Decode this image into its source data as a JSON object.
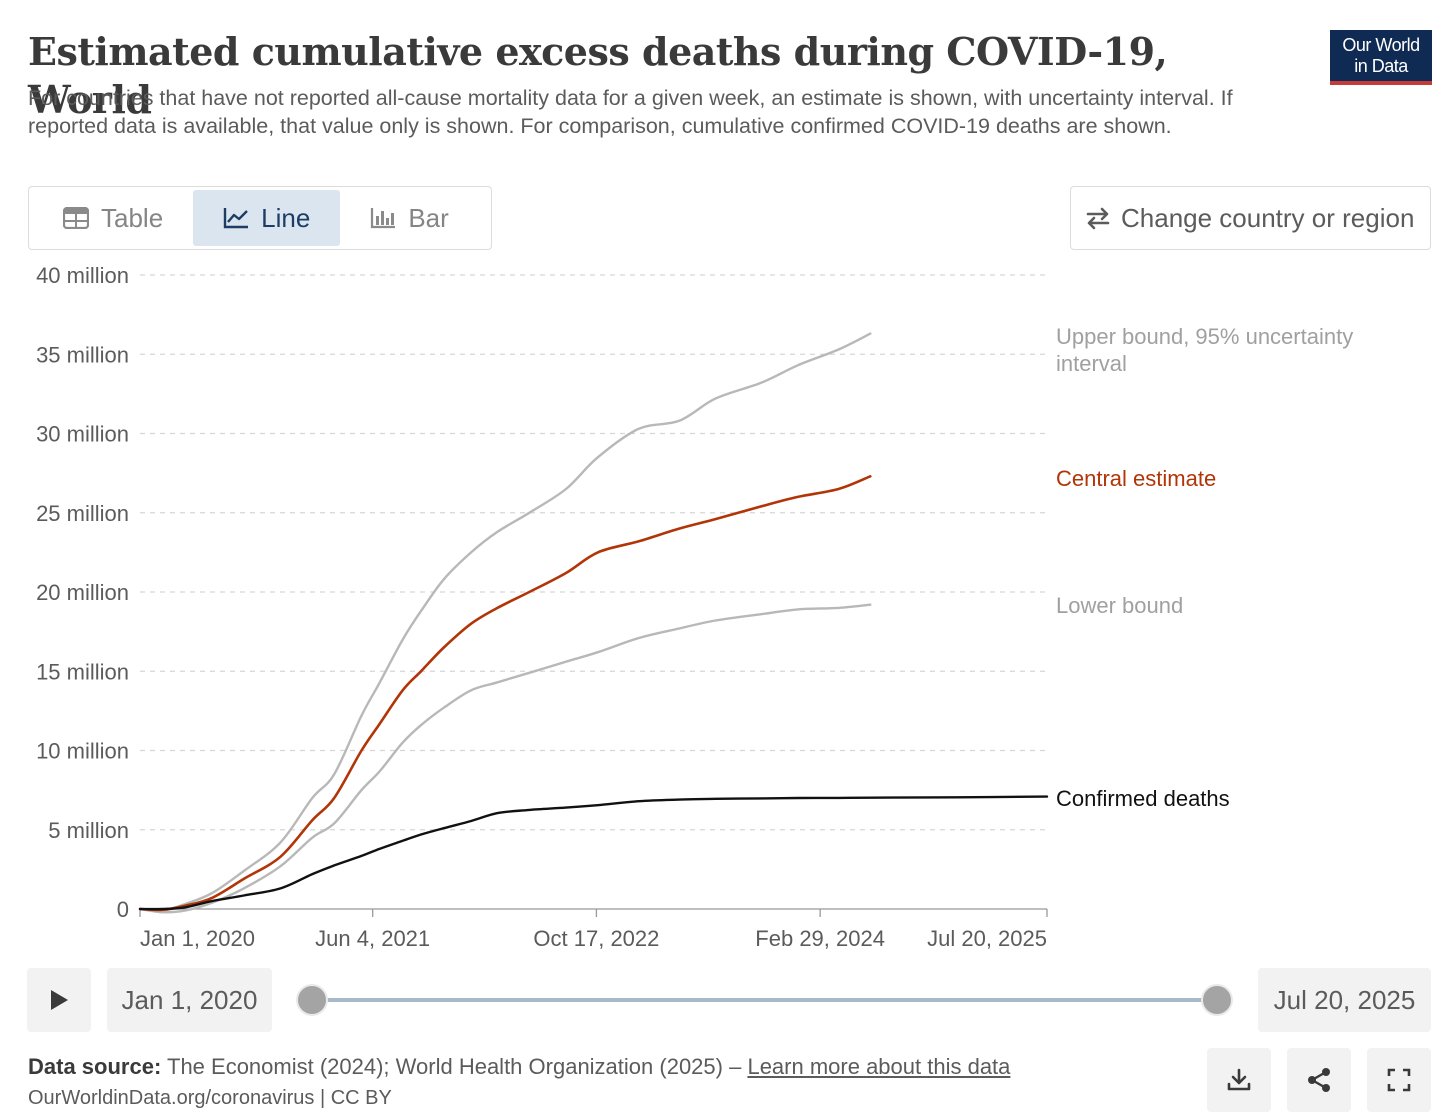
{
  "header": {
    "title": "Estimated cumulative excess deaths during COVID-19, World",
    "subtitle": "For countries that have not reported all-cause mortality data for a given week, an estimate is shown, with uncertainty interval. If reported data is available, that value only is shown. For comparison, cumulative confirmed COVID-19 deaths are shown.",
    "logo_line1": "Our World",
    "logo_line2": "in Data"
  },
  "tabs": [
    {
      "label": "Table",
      "icon": "table-icon",
      "active": false
    },
    {
      "label": "Line",
      "icon": "line-chart-icon",
      "active": true
    },
    {
      "label": "Bar",
      "icon": "bar-chart-icon",
      "active": false
    }
  ],
  "change_button": {
    "label": "Change country or region",
    "icon": "swap-arrows-icon"
  },
  "chart_data": {
    "type": "line",
    "title": "Estimated cumulative excess deaths during COVID-19, World",
    "x_type": "date",
    "xlim": [
      "2020-01-01",
      "2025-07-20"
    ],
    "x_ticks": [
      "2020-01-01",
      "2021-06-04",
      "2022-10-17",
      "2024-02-29",
      "2025-07-20"
    ],
    "x_tick_labels": [
      "Jan 1, 2020",
      "Jun 4, 2021",
      "Oct 17, 2022",
      "Feb 29, 2024",
      "Jul 20, 2025"
    ],
    "ylim": [
      0,
      40000000
    ],
    "y_ticks": [
      0,
      5000000,
      10000000,
      15000000,
      20000000,
      25000000,
      30000000,
      35000000,
      40000000
    ],
    "y_tick_labels": [
      "0",
      "5 million",
      "10 million",
      "15 million",
      "20 million",
      "25 million",
      "30 million",
      "35 million",
      "40 million"
    ],
    "grid": "horizontal dashed",
    "legend": "line end labels",
    "series": [
      {
        "name": "Upper bound, 95% uncertainty interval",
        "color": "#b8b8b8",
        "x": [
          "2020-01-01",
          "2020-02-20",
          "2020-04-10",
          "2020-06-10",
          "2020-08-20",
          "2020-11-10",
          "2021-01-20",
          "2021-03-10",
          "2021-05-10",
          "2021-06-20",
          "2021-08-10",
          "2021-09-20",
          "2021-11-10",
          "2022-01-10",
          "2022-03-10",
          "2022-05-20",
          "2022-08-10",
          "2022-10-20",
          "2023-01-20",
          "2023-04-20",
          "2023-07-10",
          "2023-10-20",
          "2024-01-10",
          "2024-04-10",
          "2024-06-20"
        ],
        "y": [
          0,
          -100000,
          300000,
          1000000,
          2400000,
          4200000,
          7000000,
          8500000,
          12200000,
          14300000,
          17000000,
          18800000,
          20800000,
          22500000,
          23800000,
          25000000,
          26500000,
          28500000,
          30300000,
          30800000,
          32200000,
          33200000,
          34300000,
          35300000,
          36300000
        ]
      },
      {
        "name": "Central estimate",
        "color": "#b13507",
        "x": [
          "2020-01-01",
          "2020-02-20",
          "2020-04-10",
          "2020-06-10",
          "2020-08-20",
          "2020-11-10",
          "2021-01-20",
          "2021-03-10",
          "2021-05-10",
          "2021-06-20",
          "2021-08-10",
          "2021-09-20",
          "2021-11-10",
          "2022-01-10",
          "2022-03-10",
          "2022-05-20",
          "2022-08-10",
          "2022-10-20",
          "2023-01-20",
          "2023-04-20",
          "2023-07-10",
          "2023-10-20",
          "2024-01-10",
          "2024-04-10",
          "2024-06-20"
        ],
        "y": [
          0,
          -50000,
          200000,
          700000,
          1900000,
          3300000,
          5600000,
          7000000,
          10000000,
          11700000,
          13800000,
          15000000,
          16500000,
          18000000,
          19000000,
          20000000,
          21200000,
          22500000,
          23200000,
          24000000,
          24600000,
          25400000,
          26000000,
          26500000,
          27300000
        ]
      },
      {
        "name": "Lower bound",
        "color": "#b8b8b8",
        "x": [
          "2020-01-01",
          "2020-02-20",
          "2020-04-10",
          "2020-06-10",
          "2020-08-20",
          "2020-11-10",
          "2021-01-20",
          "2021-03-10",
          "2021-05-10",
          "2021-06-20",
          "2021-08-10",
          "2021-09-20",
          "2021-11-10",
          "2022-01-10",
          "2022-03-10",
          "2022-05-20",
          "2022-08-10",
          "2022-10-20",
          "2023-01-20",
          "2023-04-20",
          "2023-07-10",
          "2023-10-20",
          "2024-01-10",
          "2024-04-10",
          "2024-06-20"
        ],
        "y": [
          0,
          -200000,
          -100000,
          400000,
          1300000,
          2700000,
          4500000,
          5400000,
          7500000,
          8700000,
          10500000,
          11600000,
          12700000,
          13800000,
          14300000,
          14900000,
          15600000,
          16200000,
          17100000,
          17700000,
          18200000,
          18600000,
          18900000,
          19000000,
          19200000
        ]
      },
      {
        "name": "Confirmed deaths",
        "color": "#111111",
        "x": [
          "2020-01-01",
          "2020-02-20",
          "2020-04-10",
          "2020-06-10",
          "2020-08-20",
          "2020-11-10",
          "2021-01-20",
          "2021-03-10",
          "2021-05-10",
          "2021-06-20",
          "2021-08-10",
          "2021-09-20",
          "2021-11-10",
          "2022-01-10",
          "2022-03-10",
          "2022-05-20",
          "2022-08-10",
          "2022-10-20",
          "2023-01-20",
          "2023-04-20",
          "2023-07-10",
          "2023-10-20",
          "2024-01-10",
          "2024-04-10",
          "2024-06-20",
          "2025-01-01",
          "2025-07-20"
        ],
        "y": [
          0,
          0,
          100000,
          500000,
          850000,
          1300000,
          2200000,
          2750000,
          3350000,
          3800000,
          4300000,
          4700000,
          5100000,
          5550000,
          6050000,
          6250000,
          6400000,
          6550000,
          6800000,
          6900000,
          6950000,
          6980000,
          7000000,
          7010000,
          7020000,
          7050000,
          7090000
        ]
      }
    ]
  },
  "timeline": {
    "start_date": "Jan 1, 2020",
    "end_date": "Jul 20, 2025",
    "play_icon": "play-icon"
  },
  "footer": {
    "source_label": "Data source:",
    "source_text": "The Economist (2024); World Health Organization (2025) –",
    "learn_more": "Learn more about this data",
    "url_text": "OurWorldinData.org/coronavirus | CC BY",
    "buttons": [
      "download-icon",
      "share-icon",
      "fullscreen-icon"
    ]
  }
}
